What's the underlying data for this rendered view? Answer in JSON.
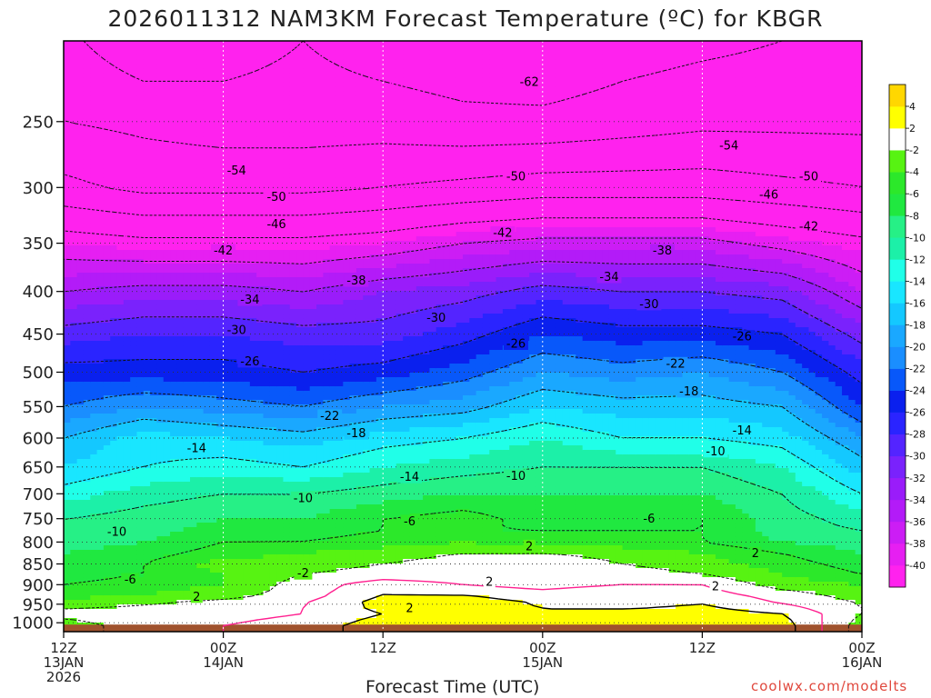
{
  "title": "2026011312 NAM3KM Forecast Temperature (ºC) for KBGR",
  "watermark": "coolwx.com/modelts",
  "chart_data": {
    "type": "heatmap",
    "xlabel": "Forecast Time (UTC)",
    "ylabel": "",
    "x_range": [
      0,
      60
    ],
    "y_range": [
      1025,
      200
    ],
    "y_scale": "log",
    "x_ticks": [
      {
        "hour": 0,
        "lines": [
          "12Z",
          "13JAN",
          "2026"
        ]
      },
      {
        "hour": 12,
        "lines": [
          "00Z",
          "14JAN"
        ]
      },
      {
        "hour": 24,
        "lines": [
          "12Z"
        ]
      },
      {
        "hour": 36,
        "lines": [
          "00Z",
          "15JAN"
        ]
      },
      {
        "hour": 48,
        "lines": [
          "12Z"
        ]
      },
      {
        "hour": 60,
        "lines": [
          "00Z",
          "16JAN"
        ]
      }
    ],
    "y_ticks": [
      250,
      300,
      350,
      400,
      450,
      500,
      550,
      600,
      650,
      700,
      750,
      800,
      850,
      900,
      950,
      1000
    ],
    "grid": true,
    "surface_pressure_hpa": 1005,
    "colorbar": {
      "position": "right",
      "levels": [
        -40,
        -38,
        -36,
        -34,
        -32,
        -30,
        -28,
        -26,
        -24,
        -22,
        -20,
        -18,
        -16,
        -14,
        -12,
        -10,
        -8,
        -6,
        -4,
        -2,
        2,
        4
      ],
      "colors": [
        "#ff22ee",
        "#e61ff2",
        "#cc1df5",
        "#b31bf8",
        "#9a1cfa",
        "#7a22fc",
        "#5424ff",
        "#2a24ff",
        "#0a20ee",
        "#0858fa",
        "#1a8eff",
        "#1aa8ff",
        "#14c8ff",
        "#19e6ff",
        "#20ffe8",
        "#1cf0a8",
        "#26f086",
        "#20e840",
        "#2ce82a",
        "#57f312",
        "#ffffff",
        "#ffff00",
        "#ffd700"
      ]
    },
    "temperature_profiles": {
      "note": "temperature (ºC) at pressure levels for each forecast hour",
      "pressure_levels": [
        1005,
        975,
        950,
        925,
        900,
        875,
        850,
        825,
        800,
        775,
        750,
        700,
        650,
        600,
        550,
        500,
        450,
        400,
        350,
        300,
        250,
        200
      ],
      "hours": [
        0,
        6,
        12,
        18,
        24,
        30,
        36,
        42,
        48,
        54,
        60
      ],
      "values": [
        [
          -3,
          -1,
          0,
          1,
          3,
          3,
          2,
          3,
          4,
          3,
          -3
        ],
        [
          -1,
          -1,
          -1,
          0,
          2,
          2,
          2,
          3,
          3,
          2,
          -2
        ],
        [
          -3,
          -2,
          -1,
          0,
          3,
          3,
          2,
          1,
          2,
          0,
          -2
        ],
        [
          -5,
          -4,
          -3,
          -1,
          2,
          2,
          1,
          2,
          1,
          -1,
          -3
        ],
        [
          -6,
          -5,
          -4,
          -1,
          1,
          0,
          -1,
          0,
          0,
          -3,
          -4
        ],
        [
          -7,
          -6,
          -4,
          -2,
          -1,
          -1,
          -2,
          -1,
          -2,
          -4,
          -6
        ],
        [
          -7,
          -6,
          -3,
          -3,
          -2,
          -1,
          0,
          -2,
          -3,
          -5,
          -7
        ],
        [
          -8,
          -7,
          -5,
          -4,
          -3,
          -2,
          -2,
          -3,
          -4,
          -6,
          -8
        ],
        [
          -9,
          -8,
          -6,
          -6,
          -5,
          -4,
          -5,
          -5,
          -6,
          -8,
          -9
        ],
        [
          -10,
          -9,
          -7,
          -7,
          -6,
          -6,
          -6,
          -6,
          -6,
          -9,
          -10
        ],
        [
          -10,
          -9,
          -8,
          -8,
          -6,
          -5,
          -7,
          -7,
          -6,
          -9,
          -11
        ],
        [
          -13,
          -11,
          -10,
          -10,
          -9,
          -8,
          -8,
          -8,
          -8,
          -10,
          -14
        ],
        [
          -16,
          -14,
          -13,
          -14,
          -12,
          -11,
          -10,
          -10,
          -10,
          -12,
          -17
        ],
        [
          -18,
          -15,
          -16,
          -17,
          -15,
          -14,
          -12,
          -14,
          -14,
          -15,
          -20
        ],
        [
          -22,
          -20,
          -21,
          -22,
          -20,
          -19,
          -16,
          -17,
          -17,
          -18,
          -24
        ],
        [
          -25,
          -25,
          -25,
          -26,
          -25,
          -23,
          -20,
          -21,
          -20,
          -22,
          -27
        ],
        [
          -29,
          -28,
          -28,
          -29,
          -29,
          -27,
          -24,
          -25,
          -25,
          -26,
          -31
        ],
        [
          -34,
          -33,
          -33,
          -34,
          -32,
          -31,
          -29,
          -30,
          -30,
          -31,
          -36
        ],
        [
          -40,
          -41,
          -41,
          -41,
          -40,
          -38,
          -37,
          -37,
          -37,
          -39,
          -41
        ],
        [
          -49,
          -51,
          -51,
          -51,
          -50,
          -49,
          -48,
          -48,
          -48,
          -49,
          -50
        ],
        [
          -54,
          -55,
          -56,
          -56,
          -56,
          -57,
          -57,
          -56,
          -55,
          -55,
          -55
        ],
        [
          -57,
          -61,
          -60,
          -58,
          -60,
          -61,
          -62,
          -60,
          -59,
          -58,
          -57
        ]
      ]
    },
    "contour_labels_dashed": [
      {
        "value": "-62",
        "hour": 35,
        "hpa": 224
      },
      {
        "value": "-54",
        "hour": 13,
        "hpa": 286
      },
      {
        "value": "-54",
        "hour": 50,
        "hpa": 267
      },
      {
        "value": "-50",
        "hour": 16,
        "hpa": 308
      },
      {
        "value": "-50",
        "hour": 34,
        "hpa": 291
      },
      {
        "value": "-50",
        "hour": 56,
        "hpa": 291
      },
      {
        "value": "-46",
        "hour": 16,
        "hpa": 332
      },
      {
        "value": "-46",
        "hour": 53,
        "hpa": 306
      },
      {
        "value": "-42",
        "hour": 12,
        "hpa": 357
      },
      {
        "value": "-42",
        "hour": 33,
        "hpa": 340
      },
      {
        "value": "-42",
        "hour": 56,
        "hpa": 334
      },
      {
        "value": "-38",
        "hour": 22,
        "hpa": 388
      },
      {
        "value": "-38",
        "hour": 45,
        "hpa": 357
      },
      {
        "value": "-34",
        "hour": 14,
        "hpa": 409
      },
      {
        "value": "-34",
        "hour": 41,
        "hpa": 384
      },
      {
        "value": "-30",
        "hour": 13,
        "hpa": 445
      },
      {
        "value": "-30",
        "hour": 28,
        "hpa": 430
      },
      {
        "value": "-30",
        "hour": 44,
        "hpa": 414
      },
      {
        "value": "-26",
        "hour": 14,
        "hpa": 485
      },
      {
        "value": "-26",
        "hour": 34,
        "hpa": 462
      },
      {
        "value": "-26",
        "hour": 51,
        "hpa": 453
      },
      {
        "value": "-22",
        "hour": 20,
        "hpa": 564
      },
      {
        "value": "-22",
        "hour": 46,
        "hpa": 488
      },
      {
        "value": "-18",
        "hour": 22,
        "hpa": 592
      },
      {
        "value": "-18",
        "hour": 47,
        "hpa": 527
      },
      {
        "value": "-14",
        "hour": 10,
        "hpa": 617
      },
      {
        "value": "-14",
        "hour": 26,
        "hpa": 668
      },
      {
        "value": "-14",
        "hour": 51,
        "hpa": 587
      },
      {
        "value": "-10",
        "hour": 4,
        "hpa": 777
      },
      {
        "value": "-10",
        "hour": 18,
        "hpa": 708
      },
      {
        "value": "-10",
        "hour": 34,
        "hpa": 666
      },
      {
        "value": "-10",
        "hour": 49,
        "hpa": 622
      },
      {
        "value": "-6",
        "hour": 5,
        "hpa": 887
      },
      {
        "value": "-6",
        "hour": 26,
        "hpa": 755
      },
      {
        "value": "-6",
        "hour": 44,
        "hpa": 750
      },
      {
        "value": "-2",
        "hour": 18,
        "hpa": 872
      },
      {
        "value": "2",
        "hour": 35,
        "hpa": 809
      },
      {
        "value": "2",
        "hour": 52,
        "hpa": 825
      }
    ],
    "contour_labels_solid": [
      {
        "value": "2",
        "hour": 10,
        "hpa": 930
      },
      {
        "value": "2",
        "hour": 26,
        "hpa": 960
      },
      {
        "value": "2",
        "hour": 32,
        "hpa": 893
      },
      {
        "value": "2",
        "hour": 49,
        "hpa": 904
      }
    ]
  }
}
